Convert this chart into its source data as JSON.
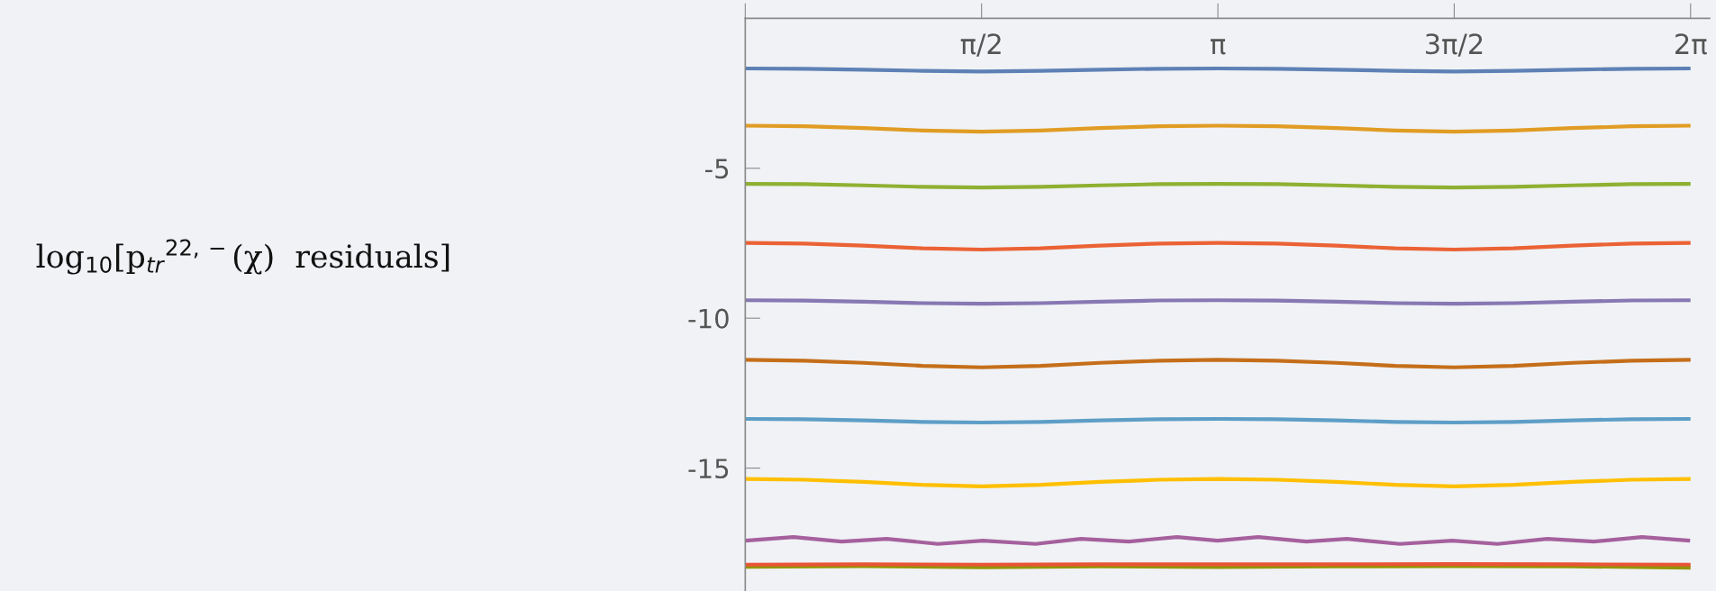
{
  "chart_data": {
    "type": "line",
    "annotations": [
      "log$_{10}$[p$_{tr}$$^{22,−}$(χ)  residuals]"
    ],
    "x": [
      0,
      0.393,
      0.785,
      1.178,
      1.571,
      1.963,
      2.356,
      2.749,
      3.142,
      3.534,
      3.927,
      4.32,
      4.712,
      5.105,
      5.498,
      5.89,
      6.283
    ],
    "xlim": [
      0,
      6.41
    ],
    "ylim": [
      -19.1,
      0
    ],
    "xticks": [
      {
        "value": 0,
        "label": null
      },
      {
        "value": 1.5708,
        "label": "π/2"
      },
      {
        "value": 3.1416,
        "label": "π"
      },
      {
        "value": 4.7124,
        "label": "3π/2"
      },
      {
        "value": 6.2832,
        "label": "2π"
      }
    ],
    "yticks": [
      -5,
      -10,
      -15
    ],
    "grid": false,
    "legend": false,
    "marker": "none",
    "line_style": "solid",
    "series": [
      {
        "color": "#5e81b5",
        "values": [
          -1.67,
          -1.68,
          -1.71,
          -1.75,
          -1.77,
          -1.75,
          -1.71,
          -1.68,
          -1.67,
          -1.68,
          -1.71,
          -1.75,
          -1.77,
          -1.75,
          -1.71,
          -1.68,
          -1.67
        ]
      },
      {
        "color": "#e19c24",
        "values": [
          -3.58,
          -3.6,
          -3.66,
          -3.74,
          -3.78,
          -3.74,
          -3.66,
          -3.6,
          -3.58,
          -3.6,
          -3.66,
          -3.74,
          -3.78,
          -3.74,
          -3.66,
          -3.6,
          -3.58
        ]
      },
      {
        "color": "#8fb032",
        "values": [
          -5.52,
          -5.53,
          -5.57,
          -5.62,
          -5.64,
          -5.62,
          -5.57,
          -5.53,
          -5.52,
          -5.53,
          -5.57,
          -5.62,
          -5.64,
          -5.62,
          -5.57,
          -5.53,
          -5.52
        ]
      },
      {
        "color": "#eb6235",
        "values": [
          -7.49,
          -7.51,
          -7.58,
          -7.67,
          -7.71,
          -7.67,
          -7.58,
          -7.51,
          -7.49,
          -7.51,
          -7.58,
          -7.67,
          -7.71,
          -7.67,
          -7.58,
          -7.51,
          -7.49
        ]
      },
      {
        "color": "#8778b3",
        "values": [
          -9.4,
          -9.41,
          -9.45,
          -9.5,
          -9.52,
          -9.5,
          -9.45,
          -9.41,
          -9.4,
          -9.41,
          -9.45,
          -9.5,
          -9.52,
          -9.5,
          -9.45,
          -9.41,
          -9.4
        ]
      },
      {
        "color": "#c56e1a",
        "values": [
          -11.39,
          -11.42,
          -11.49,
          -11.59,
          -11.64,
          -11.59,
          -11.49,
          -11.42,
          -11.39,
          -11.42,
          -11.49,
          -11.59,
          -11.64,
          -11.59,
          -11.49,
          -11.42,
          -11.39
        ]
      },
      {
        "color": "#5d9ec7",
        "values": [
          -13.36,
          -13.37,
          -13.41,
          -13.46,
          -13.48,
          -13.46,
          -13.41,
          -13.37,
          -13.36,
          -13.37,
          -13.41,
          -13.46,
          -13.48,
          -13.46,
          -13.41,
          -13.37,
          -13.36
        ]
      },
      {
        "color": "#ffbf00",
        "values": [
          -15.36,
          -15.39,
          -15.46,
          -15.56,
          -15.61,
          -15.56,
          -15.46,
          -15.39,
          -15.36,
          -15.39,
          -15.46,
          -15.56,
          -15.61,
          -15.56,
          -15.46,
          -15.39,
          -15.36
        ]
      },
      {
        "color": "#a5609d",
        "x": [
          0,
          0.32,
          0.64,
          0.94,
          1.28,
          1.58,
          1.93,
          2.23,
          2.55,
          2.87,
          3.14,
          3.41,
          3.73,
          4.0,
          4.35,
          4.7,
          5.0,
          5.33,
          5.64,
          5.96,
          6.28
        ],
        "values": [
          -17.42,
          -17.3,
          -17.45,
          -17.36,
          -17.53,
          -17.42,
          -17.53,
          -17.36,
          -17.45,
          -17.3,
          -17.42,
          -17.3,
          -17.45,
          -17.36,
          -17.53,
          -17.42,
          -17.53,
          -17.36,
          -17.45,
          -17.3,
          -17.42
        ]
      },
      {
        "color": "#929600",
        "x": [
          0,
          0.785,
          1.571,
          2.356,
          3.142,
          3.927,
          4.712,
          5.498,
          6.283
        ],
        "values": [
          -18.29,
          -18.27,
          -18.31,
          -18.28,
          -18.3,
          -18.28,
          -18.27,
          -18.28,
          -18.32
        ]
      },
      {
        "color": "#e95536",
        "x": [
          0,
          0.785,
          1.571,
          2.356,
          3.142,
          3.927,
          4.712,
          5.498,
          6.283
        ],
        "values": [
          -18.22,
          -18.21,
          -18.22,
          -18.21,
          -18.21,
          -18.21,
          -18.2,
          -18.21,
          -18.22
        ]
      }
    ]
  }
}
